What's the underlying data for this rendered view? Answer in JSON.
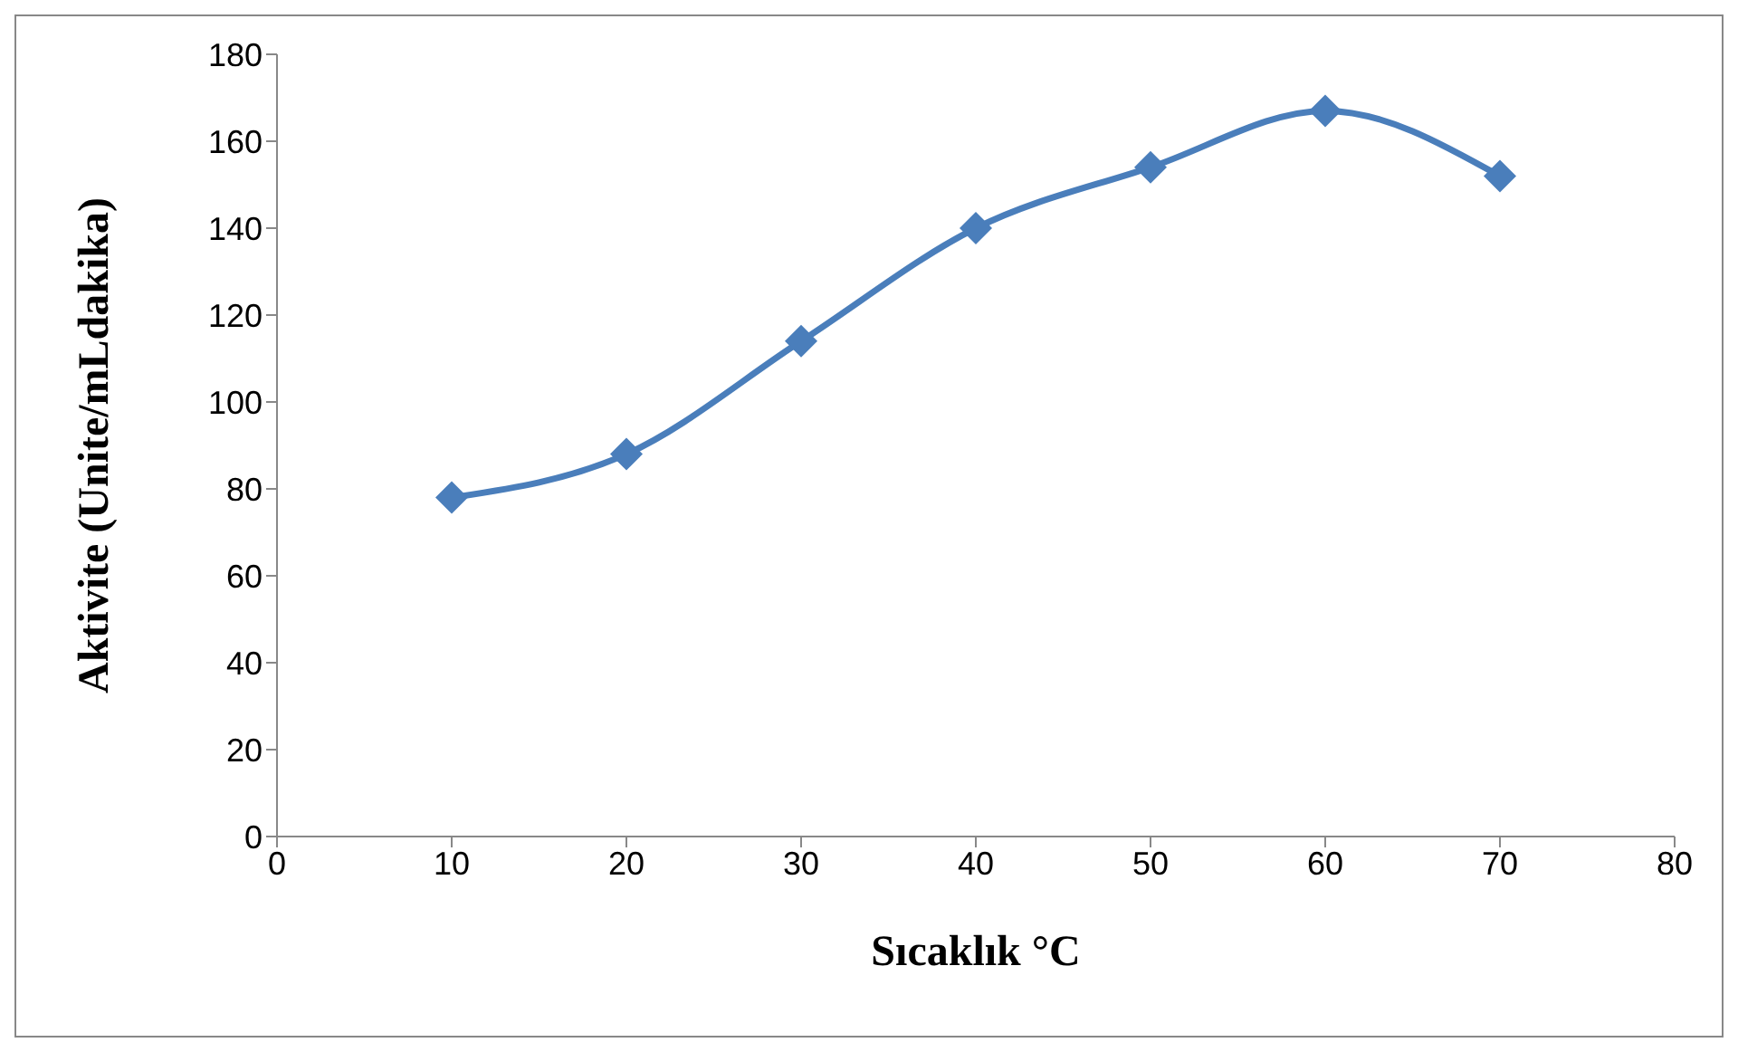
{
  "chart_data": {
    "type": "line",
    "xlabel": "Sıcaklık °C",
    "ylabel": "Aktivite (Unite/mLdakika)",
    "x": [
      10,
      20,
      30,
      40,
      50,
      60,
      70
    ],
    "series": [
      {
        "color": "#4a7ebb",
        "values": [
          78,
          88,
          114,
          140,
          154,
          167,
          152
        ]
      }
    ],
    "xlim": [
      0,
      80
    ],
    "xticks": [
      0,
      10,
      20,
      30,
      40,
      50,
      60,
      70,
      80
    ],
    "ylim": [
      0,
      180
    ],
    "yticks": [
      0,
      20,
      40,
      60,
      80,
      100,
      120,
      140,
      160,
      180
    ],
    "grid": false,
    "legend": false,
    "marker": "diamond",
    "line_style": "solid"
  }
}
